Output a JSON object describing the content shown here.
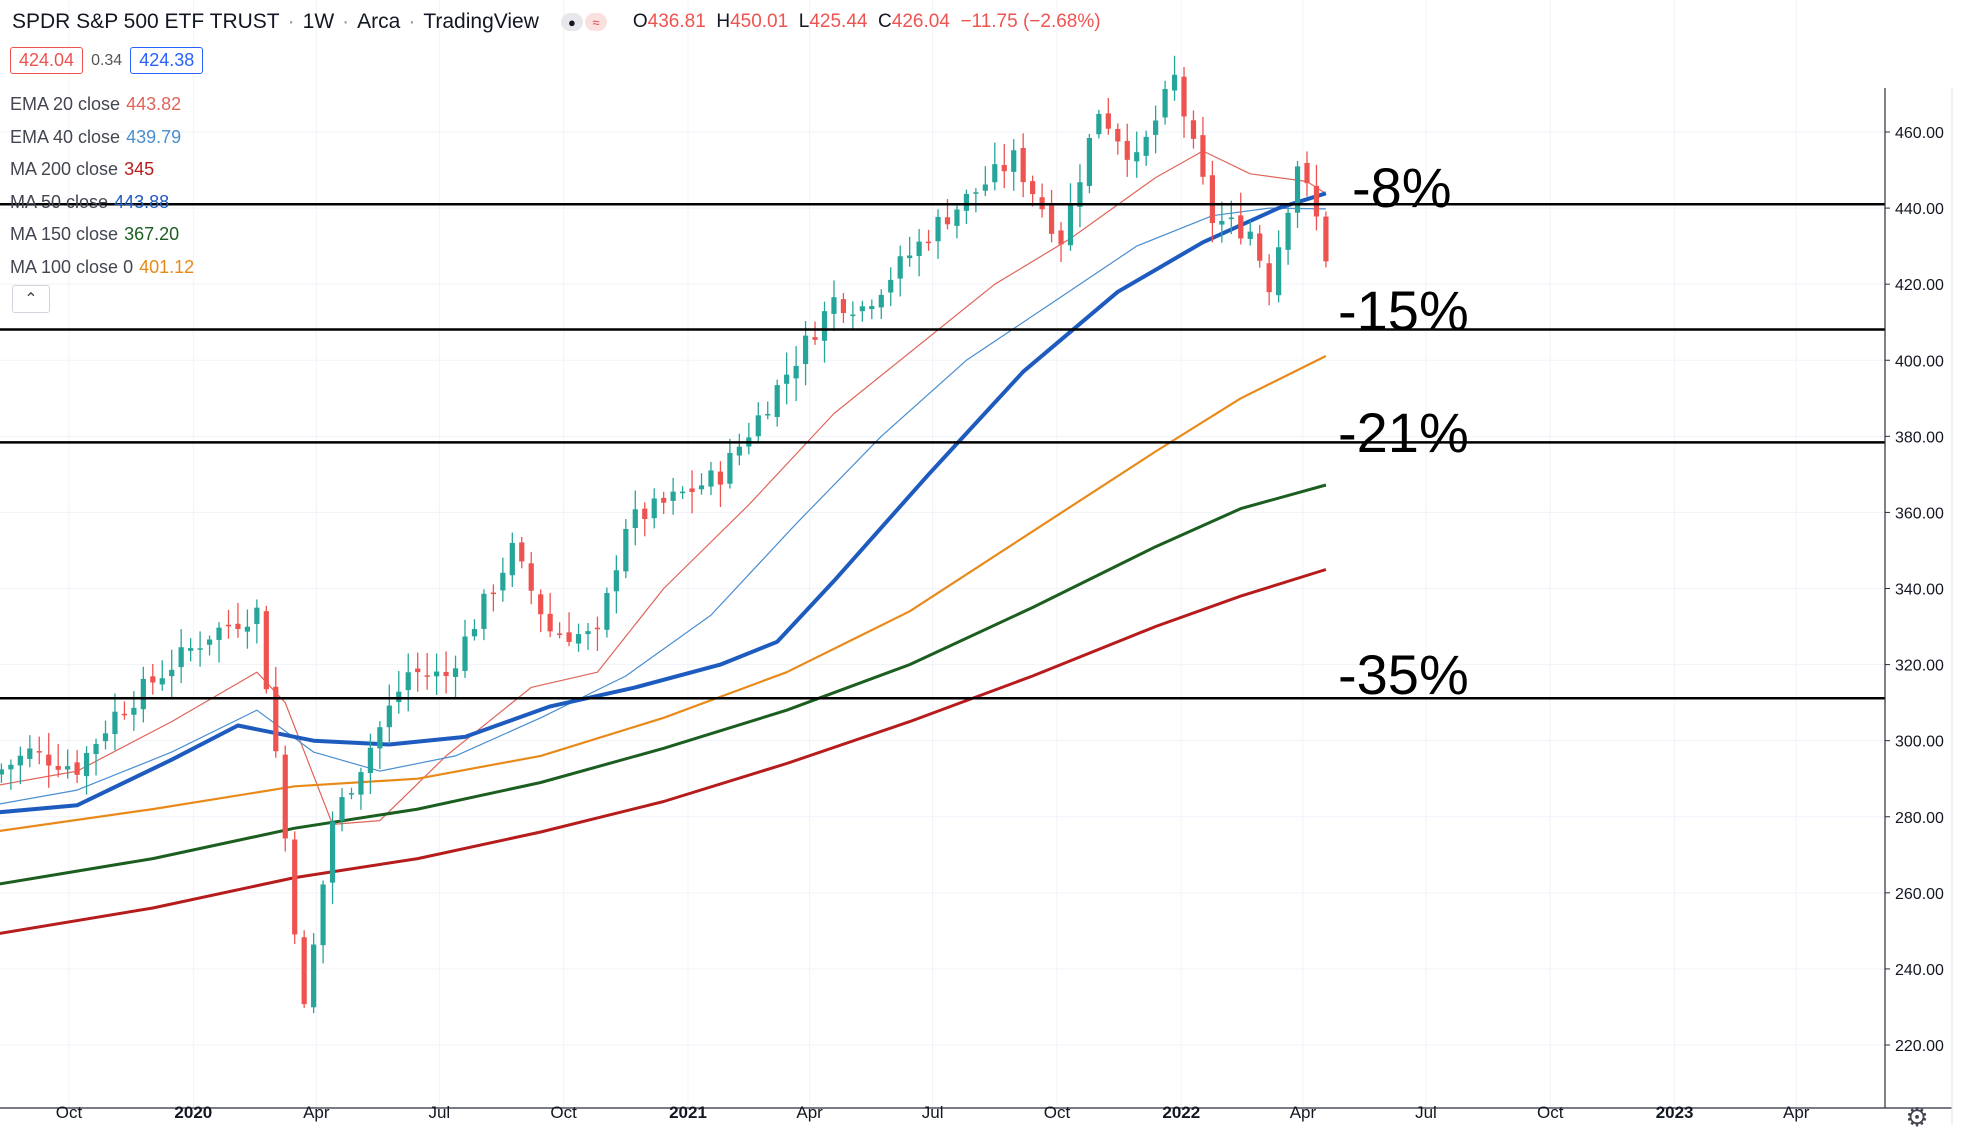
{
  "header": {
    "symbol": "SPDR S&P 500 ETF TRUST",
    "interval": "1W",
    "exchange": "Arca",
    "source": "TradingView",
    "ohlc": {
      "o": "436.81",
      "h": "450.01",
      "l": "425.44",
      "c": "426.04",
      "change": "−11.75 (−2.68%)"
    },
    "bid": "424.04",
    "spread": "0.34",
    "ask": "424.38"
  },
  "legend": [
    {
      "label": "EMA 20 close",
      "value": "443.82",
      "color": "#e0655a"
    },
    {
      "label": "EMA 40 close",
      "value": "439.79",
      "color": "#4a8ed0"
    },
    {
      "label": "MA 200 close",
      "value": "345",
      "color": "#b71c1c"
    },
    {
      "label": "MA 50 close",
      "value": "443.88",
      "color": "#1e5bbf"
    },
    {
      "label": "MA 150 close",
      "value": "367.20",
      "color": "#1b5e20"
    },
    {
      "label": "MA 100 close 0",
      "value": "401.12",
      "color": "#e88a1a"
    }
  ],
  "annotations": [
    {
      "text": "-8%",
      "price": 441.0
    },
    {
      "text": "-15%",
      "price": 408.08
    },
    {
      "text": "-21%",
      "price": 378.42
    },
    {
      "text": "-35%",
      "price": 311.14
    }
  ],
  "chart_data": {
    "type": "candlestick",
    "y_axis": {
      "min": 210,
      "max": 475,
      "ticks": [
        "220.00",
        "240.00",
        "260.00",
        "280.00",
        "300.00",
        "320.00",
        "340.00",
        "360.00",
        "380.00",
        "400.00",
        "420.00",
        "440.00",
        "460.00"
      ]
    },
    "x_axis": {
      "labels": [
        {
          "text": "Oct",
          "date": "2019-10-01",
          "bold": false
        },
        {
          "text": "2020",
          "date": "2020-01-01",
          "bold": true
        },
        {
          "text": "Apr",
          "date": "2020-04-01",
          "bold": false
        },
        {
          "text": "Jul",
          "date": "2020-07-01",
          "bold": false
        },
        {
          "text": "Oct",
          "date": "2020-10-01",
          "bold": false
        },
        {
          "text": "2021",
          "date": "2021-01-01",
          "bold": true
        },
        {
          "text": "Apr",
          "date": "2021-04-01",
          "bold": false
        },
        {
          "text": "Jul",
          "date": "2021-07-01",
          "bold": false
        },
        {
          "text": "Oct",
          "date": "2021-10-01",
          "bold": false
        },
        {
          "text": "2022",
          "date": "2022-01-01",
          "bold": true
        },
        {
          "text": "Apr",
          "date": "2022-04-01",
          "bold": false
        },
        {
          "text": "Jul",
          "date": "2022-07-01",
          "bold": false
        },
        {
          "text": "Oct",
          "date": "2022-10-01",
          "bold": false
        },
        {
          "text": "2023",
          "date": "2023-01-01",
          "bold": true
        },
        {
          "text": "Apr",
          "date": "2023-04-01",
          "bold": false
        }
      ]
    },
    "horizontal_lines": [
      {
        "price": 441.0,
        "label": "441.00"
      },
      {
        "price": 408.08,
        "label": "408.08"
      },
      {
        "price": 378.42,
        "label": "378.42"
      },
      {
        "price": 311.14,
        "label": "311.14"
      }
    ],
    "price_anchors": [
      {
        "date": "2019-08-05",
        "price": 291
      },
      {
        "date": "2019-09-02",
        "price": 297
      },
      {
        "date": "2019-10-07",
        "price": 293
      },
      {
        "date": "2019-11-04",
        "price": 307
      },
      {
        "date": "2019-12-16",
        "price": 320
      },
      {
        "date": "2020-01-13",
        "price": 328
      },
      {
        "date": "2020-02-17",
        "price": 334
      },
      {
        "date": "2020-03-02",
        "price": 297
      },
      {
        "date": "2020-03-23",
        "price": 229
      },
      {
        "date": "2020-04-13",
        "price": 279
      },
      {
        "date": "2020-06-08",
        "price": 318
      },
      {
        "date": "2020-07-06",
        "price": 317
      },
      {
        "date": "2020-08-24",
        "price": 350
      },
      {
        "date": "2020-09-21",
        "price": 329
      },
      {
        "date": "2020-10-26",
        "price": 327
      },
      {
        "date": "2020-11-16",
        "price": 357
      },
      {
        "date": "2021-01-25",
        "price": 370
      },
      {
        "date": "2021-02-22",
        "price": 385
      },
      {
        "date": "2021-04-19",
        "price": 416
      },
      {
        "date": "2021-05-10",
        "price": 414
      },
      {
        "date": "2021-07-05",
        "price": 436
      },
      {
        "date": "2021-08-30",
        "price": 453
      },
      {
        "date": "2021-10-04",
        "price": 432
      },
      {
        "date": "2021-11-01",
        "price": 466
      },
      {
        "date": "2021-11-29",
        "price": 452
      },
      {
        "date": "2021-12-27",
        "price": 474
      },
      {
        "date": "2022-01-24",
        "price": 437
      },
      {
        "date": "2022-02-21",
        "price": 434
      },
      {
        "date": "2022-03-07",
        "price": 420
      },
      {
        "date": "2022-03-28",
        "price": 452
      },
      {
        "date": "2022-04-11",
        "price": 437
      },
      {
        "date": "2022-04-18",
        "price": 426
      }
    ],
    "series": [
      {
        "name": "EMA 20 close",
        "color": "#e0655a",
        "width": 1.2,
        "points": [
          [
            "2019-08-05",
            288
          ],
          [
            "2019-10-07",
            292
          ],
          [
            "2019-12-16",
            305
          ],
          [
            "2020-02-17",
            318
          ],
          [
            "2020-03-09",
            310
          ],
          [
            "2020-04-13",
            278
          ],
          [
            "2020-05-18",
            279
          ],
          [
            "2020-07-06",
            296
          ],
          [
            "2020-09-07",
            314
          ],
          [
            "2020-10-26",
            318
          ],
          [
            "2020-12-14",
            340
          ],
          [
            "2021-02-15",
            362
          ],
          [
            "2021-04-19",
            386
          ],
          [
            "2021-06-14",
            402
          ],
          [
            "2021-08-16",
            420
          ],
          [
            "2021-10-11",
            432
          ],
          [
            "2021-12-13",
            448
          ],
          [
            "2022-01-17",
            455
          ],
          [
            "2022-02-21",
            449
          ],
          [
            "2022-04-04",
            447
          ],
          [
            "2022-04-18",
            443.82
          ]
        ]
      },
      {
        "name": "EMA 40 close",
        "color": "#4a8ed0",
        "width": 1.2,
        "points": [
          [
            "2019-08-05",
            283
          ],
          [
            "2019-10-07",
            287
          ],
          [
            "2019-12-16",
            297
          ],
          [
            "2020-02-17",
            308
          ],
          [
            "2020-03-30",
            297
          ],
          [
            "2020-05-18",
            292
          ],
          [
            "2020-07-13",
            296
          ],
          [
            "2020-09-14",
            306
          ],
          [
            "2020-11-16",
            317
          ],
          [
            "2021-01-18",
            333
          ],
          [
            "2021-03-22",
            357
          ],
          [
            "2021-05-24",
            380
          ],
          [
            "2021-07-26",
            400
          ],
          [
            "2021-09-27",
            415
          ],
          [
            "2021-11-29",
            430
          ],
          [
            "2022-01-24",
            438
          ],
          [
            "2022-03-07",
            440
          ],
          [
            "2022-04-18",
            439.79
          ]
        ]
      },
      {
        "name": "MA 50 close",
        "color": "#1e5bbf",
        "width": 4,
        "points": [
          [
            "2019-08-05",
            281
          ],
          [
            "2019-10-07",
            283
          ],
          [
            "2019-12-16",
            295
          ],
          [
            "2020-02-03",
            304
          ],
          [
            "2020-03-30",
            300
          ],
          [
            "2020-05-25",
            299
          ],
          [
            "2020-07-20",
            301
          ],
          [
            "2020-09-21",
            309
          ],
          [
            "2020-11-23",
            314
          ],
          [
            "2021-01-25",
            320
          ],
          [
            "2021-03-08",
            326
          ],
          [
            "2021-04-19",
            342
          ],
          [
            "2021-06-28",
            370
          ],
          [
            "2021-09-06",
            397
          ],
          [
            "2021-11-15",
            418
          ],
          [
            "2022-01-17",
            431
          ],
          [
            "2022-03-14",
            440
          ],
          [
            "2022-04-18",
            443.88
          ]
        ]
      },
      {
        "name": "MA 100 close 0",
        "color": "#e88a1a",
        "width": 2.2,
        "points": [
          [
            "2019-08-05",
            276
          ],
          [
            "2019-12-02",
            282
          ],
          [
            "2020-03-16",
            288
          ],
          [
            "2020-06-15",
            290
          ],
          [
            "2020-09-14",
            296
          ],
          [
            "2020-12-14",
            306
          ],
          [
            "2021-03-15",
            318
          ],
          [
            "2021-06-14",
            334
          ],
          [
            "2021-09-13",
            355
          ],
          [
            "2021-12-13",
            376
          ],
          [
            "2022-02-14",
            390
          ],
          [
            "2022-04-18",
            401.12
          ]
        ]
      },
      {
        "name": "MA 150 close",
        "color": "#1b5e20",
        "width": 3,
        "points": [
          [
            "2019-08-05",
            262
          ],
          [
            "2019-12-02",
            269
          ],
          [
            "2020-03-16",
            277
          ],
          [
            "2020-06-15",
            282
          ],
          [
            "2020-09-14",
            289
          ],
          [
            "2020-12-14",
            298
          ],
          [
            "2021-03-15",
            308
          ],
          [
            "2021-06-14",
            320
          ],
          [
            "2021-09-13",
            335
          ],
          [
            "2021-12-13",
            351
          ],
          [
            "2022-02-14",
            361
          ],
          [
            "2022-04-18",
            367.2
          ]
        ]
      },
      {
        "name": "MA 200 close",
        "color": "#b71c1c",
        "width": 3,
        "points": [
          [
            "2019-08-05",
            249
          ],
          [
            "2019-12-02",
            256
          ],
          [
            "2020-03-16",
            264
          ],
          [
            "2020-06-15",
            269
          ],
          [
            "2020-09-14",
            276
          ],
          [
            "2020-12-14",
            284
          ],
          [
            "2021-03-15",
            294
          ],
          [
            "2021-06-14",
            305
          ],
          [
            "2021-09-13",
            317
          ],
          [
            "2021-12-13",
            330
          ],
          [
            "2022-02-14",
            338
          ],
          [
            "2022-04-18",
            345
          ]
        ]
      }
    ]
  }
}
